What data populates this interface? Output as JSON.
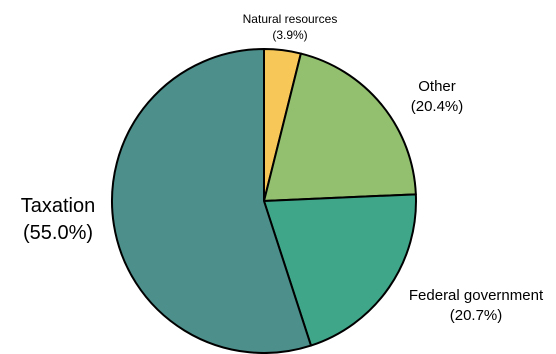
{
  "chart_data": {
    "type": "pie",
    "title": "",
    "slices": [
      {
        "label": "Natural resources",
        "value": 3.9,
        "display": "(3.9%)",
        "color": "#F7C757"
      },
      {
        "label": "Other",
        "value": 20.4,
        "display": "(20.4%)",
        "color": "#93C06F"
      },
      {
        "label": "Federal government",
        "value": 20.7,
        "display": "(20.7%)",
        "color": "#3FA68A"
      },
      {
        "label": "Taxation",
        "value": 55.0,
        "display": "(55.0%)",
        "color": "#4C8F8B"
      }
    ],
    "start_angle": "12 o'clock",
    "direction": "clockwise",
    "legend": "none",
    "labels": "outside slices with percentage in parentheses"
  }
}
